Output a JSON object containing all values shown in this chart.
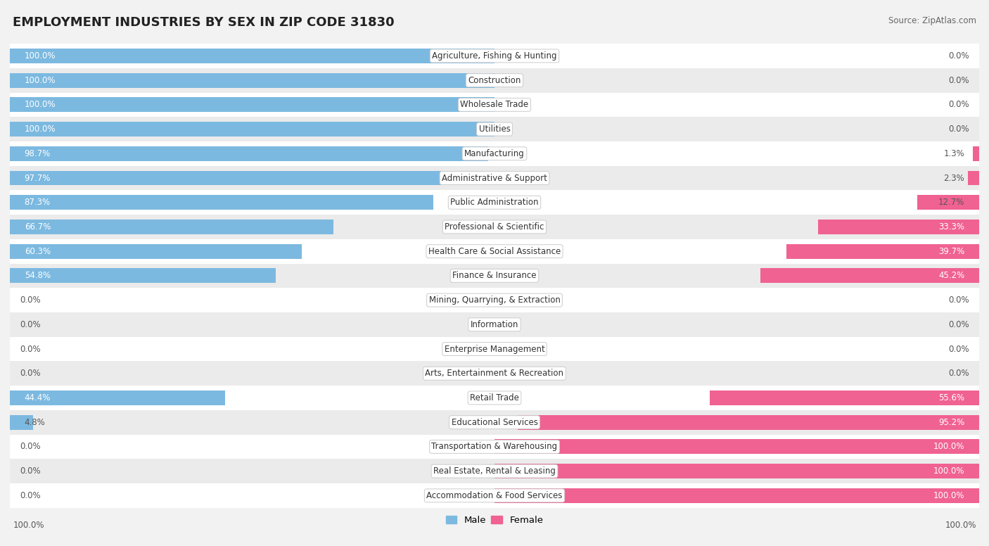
{
  "title": "EMPLOYMENT INDUSTRIES BY SEX IN ZIP CODE 31830",
  "source": "Source: ZipAtlas.com",
  "industries": [
    "Agriculture, Fishing & Hunting",
    "Construction",
    "Wholesale Trade",
    "Utilities",
    "Manufacturing",
    "Administrative & Support",
    "Public Administration",
    "Professional & Scientific",
    "Health Care & Social Assistance",
    "Finance & Insurance",
    "Mining, Quarrying, & Extraction",
    "Information",
    "Enterprise Management",
    "Arts, Entertainment & Recreation",
    "Retail Trade",
    "Educational Services",
    "Transportation & Warehousing",
    "Real Estate, Rental & Leasing",
    "Accommodation & Food Services"
  ],
  "male_pct": [
    100.0,
    100.0,
    100.0,
    100.0,
    98.7,
    97.7,
    87.3,
    66.7,
    60.3,
    54.8,
    0.0,
    0.0,
    0.0,
    0.0,
    44.4,
    4.8,
    0.0,
    0.0,
    0.0
  ],
  "female_pct": [
    0.0,
    0.0,
    0.0,
    0.0,
    1.3,
    2.3,
    12.7,
    33.3,
    39.7,
    45.2,
    0.0,
    0.0,
    0.0,
    0.0,
    55.6,
    95.2,
    100.0,
    100.0,
    100.0
  ],
  "male_color": "#7cb9e0",
  "female_color": "#f06292",
  "bg_color": "#f2f2f2",
  "row_even_color": "#ffffff",
  "row_odd_color": "#ebebeb",
  "title_fontsize": 13,
  "source_fontsize": 8.5,
  "bar_label_fontsize": 8.5,
  "pct_label_fontsize": 8.5,
  "bar_height": 0.6,
  "figsize": [
    14.06,
    7.76
  ]
}
